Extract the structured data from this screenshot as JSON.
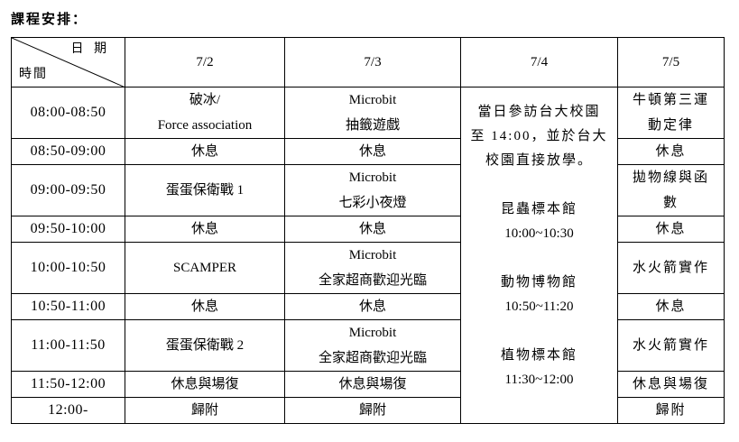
{
  "title": "課程安排：",
  "header": {
    "date_label": "日 期",
    "time_label": "時間",
    "dates": [
      "7/2",
      "7/3",
      "7/4",
      "7/5"
    ]
  },
  "rows": [
    {
      "time": "08:00-08:50",
      "d1": [
        "破冰/",
        "Force association"
      ],
      "d2": [
        "Microbit",
        "抽籤遊戲"
      ],
      "d4": [
        "牛頓第三運",
        "動定律"
      ]
    },
    {
      "time": "08:50-09:00",
      "d1": [
        "休息"
      ],
      "d2": [
        "休息"
      ],
      "d4": [
        "休息"
      ]
    },
    {
      "time": "09:00-09:50",
      "d1": [
        "蛋蛋保衛戰 1"
      ],
      "d2": [
        "Microbit",
        "七彩小夜燈"
      ],
      "d4": [
        "拋物線與函",
        "數"
      ]
    },
    {
      "time": "09:50-10:00",
      "d1": [
        "休息"
      ],
      "d2": [
        "休息"
      ],
      "d4": [
        "休息"
      ]
    },
    {
      "time": "10:00-10:50",
      "d1": [
        "SCAMPER"
      ],
      "d2": [
        "Microbit",
        "全家超商歡迎光臨"
      ],
      "d4": [
        "水火箭實作"
      ]
    },
    {
      "time": "10:50-11:00",
      "d1": [
        "休息"
      ],
      "d2": [
        "休息"
      ],
      "d4": [
        "休息"
      ]
    },
    {
      "time": "11:00-11:50",
      "d1": [
        "蛋蛋保衛戰 2"
      ],
      "d2": [
        "Microbit",
        "全家超商歡迎光臨"
      ],
      "d4": [
        "水火箭實作"
      ]
    },
    {
      "time": "11:50-12:00",
      "d1": [
        "休息與場復"
      ],
      "d2": [
        "休息與場復"
      ],
      "d4": [
        "休息與場復"
      ]
    },
    {
      "time": "12:00-",
      "d1": [
        "歸附"
      ],
      "d2": [
        "歸附"
      ],
      "d4": [
        "歸附"
      ]
    }
  ],
  "visit_day": {
    "intro": [
      "當日參訪台大校園",
      "至 14:00，並於台大",
      "校園直接放學。"
    ],
    "stops": [
      {
        "name": "昆蟲標本館",
        "time": "10:00~10:30"
      },
      {
        "name": "動物博物館",
        "time": "10:50~11:20"
      },
      {
        "name": "植物標本館",
        "time": "11:30~12:00"
      }
    ]
  }
}
